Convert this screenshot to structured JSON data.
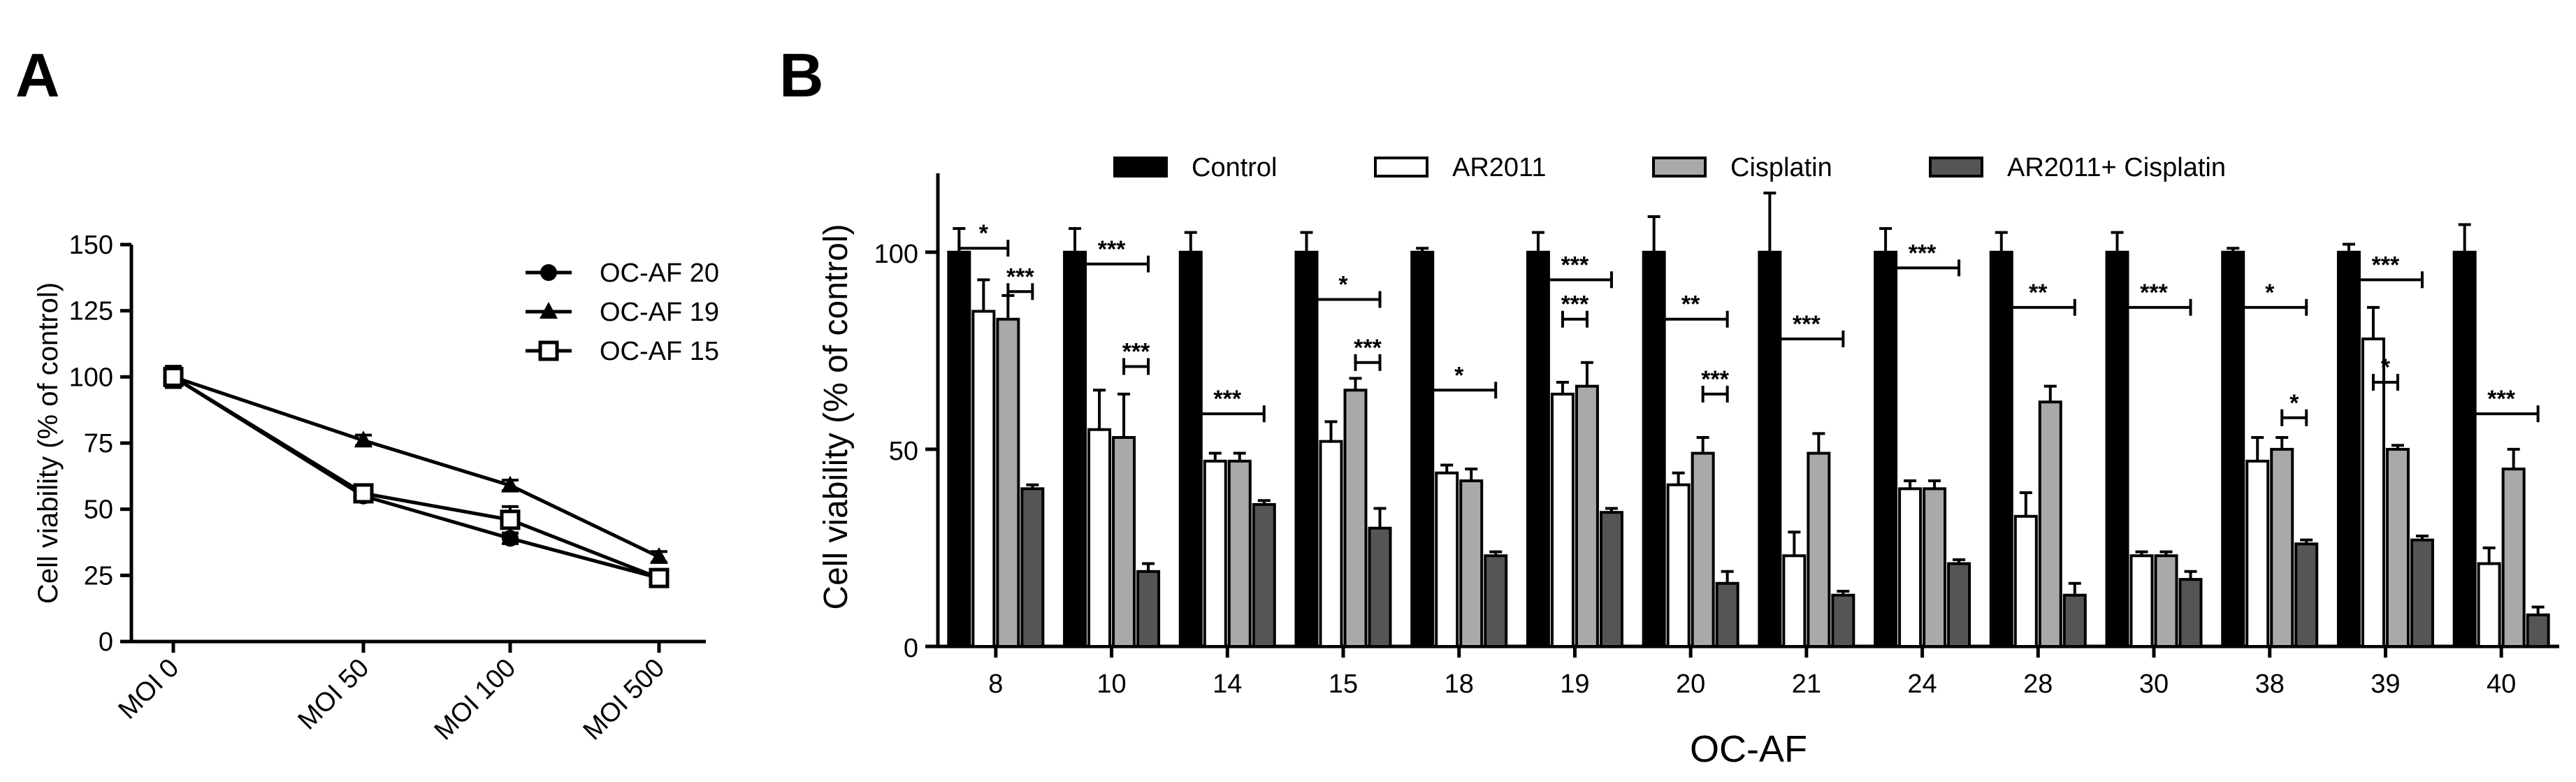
{
  "panels": {
    "a": "A",
    "b": "B"
  },
  "chart_data": [
    {
      "type": "line",
      "panel": "A",
      "categories": [
        "MOI 0",
        "MOI 50",
        "MOI 100",
        "MOI 500"
      ],
      "series": [
        {
          "name": "OC-AF 20",
          "marker": "circle",
          "values": [
            100,
            55,
            39,
            24
          ],
          "err": [
            3,
            2,
            2,
            2
          ]
        },
        {
          "name": "OC-AF 19",
          "marker": "triangle",
          "values": [
            100,
            76,
            59,
            32
          ],
          "err": [
            2,
            2,
            2,
            2
          ]
        },
        {
          "name": "OC-AF 15",
          "marker": "open-square",
          "values": [
            100,
            56,
            46,
            24
          ],
          "err": [
            4,
            3,
            5,
            3
          ]
        }
      ],
      "ylabel": "Cell viability (% of control)",
      "xlabel": "",
      "ylim": [
        0,
        150
      ],
      "yticks": [
        0,
        25,
        50,
        75,
        100,
        125,
        150
      ],
      "legend": "top-right",
      "grid": false
    },
    {
      "type": "bar",
      "panel": "B",
      "categories": [
        "8",
        "10",
        "14",
        "15",
        "18",
        "19",
        "20",
        "21",
        "24",
        "28",
        "30",
        "38",
        "39",
        "40"
      ],
      "series": [
        {
          "name": "Control",
          "color": "#000000",
          "values": [
            100,
            100,
            100,
            100,
            100,
            100,
            100,
            100,
            100,
            100,
            100,
            100,
            100,
            100
          ],
          "err": [
            6,
            6,
            5,
            5,
            1,
            5,
            9,
            15,
            6,
            5,
            5,
            1,
            2,
            7
          ]
        },
        {
          "name": "AR2011",
          "color": "#ffffff",
          "values": [
            85,
            55,
            47,
            52,
            44,
            64,
            41,
            23,
            40,
            33,
            23,
            47,
            78,
            21
          ],
          "err": [
            8,
            10,
            2,
            5,
            2,
            3,
            3,
            6,
            2,
            6,
            1,
            6,
            8,
            4
          ]
        },
        {
          "name": "Cisplatin",
          "color": "#a9a9a9",
          "values": [
            83,
            53,
            47,
            65,
            42,
            66,
            49,
            49,
            40,
            62,
            23,
            50,
            50,
            45
          ],
          "err": [
            6,
            11,
            2,
            3,
            3,
            6,
            4,
            5,
            2,
            4,
            1,
            3,
            1,
            5
          ]
        },
        {
          "name": "AR2011+ Cisplatin",
          "color": "#555555",
          "values": [
            40,
            19,
            36,
            30,
            23,
            34,
            16,
            13,
            21,
            13,
            17,
            26,
            27,
            8
          ],
          "err": [
            1,
            2,
            1,
            5,
            1,
            1,
            3,
            1,
            1,
            3,
            2,
            1,
            1,
            2
          ]
        }
      ],
      "ylabel": "Cell viability (% of control)",
      "xlabel": "OC-AF",
      "ylim": [
        0,
        120
      ],
      "yticks": [
        0,
        50,
        100
      ],
      "legend": "top",
      "grid": false,
      "annotations": [
        {
          "group": 0,
          "from": 0,
          "to": 2,
          "y": 101,
          "text": "*"
        },
        {
          "group": 0,
          "from": 2,
          "to": 3,
          "y": 90,
          "text": "***"
        },
        {
          "group": 1,
          "from": 0,
          "to": 3,
          "y": 97,
          "text": "***"
        },
        {
          "group": 1,
          "from": 2,
          "to": 3,
          "y": 71,
          "text": "***"
        },
        {
          "group": 2,
          "from": 0,
          "to": 3,
          "y": 59,
          "text": "***"
        },
        {
          "group": 3,
          "from": 0,
          "to": 3,
          "y": 88,
          "text": "*"
        },
        {
          "group": 3,
          "from": 2,
          "to": 3,
          "y": 72,
          "text": "***"
        },
        {
          "group": 4,
          "from": 0,
          "to": 3,
          "y": 65,
          "text": "*"
        },
        {
          "group": 5,
          "from": 0,
          "to": 3,
          "y": 93,
          "text": "***"
        },
        {
          "group": 5,
          "from": 1,
          "to": 2,
          "y": 83,
          "text": "***"
        },
        {
          "group": 6,
          "from": 0,
          "to": 3,
          "y": 83,
          "text": "**"
        },
        {
          "group": 6,
          "from": 2,
          "to": 3,
          "y": 64,
          "text": "***"
        },
        {
          "group": 7,
          "from": 0,
          "to": 3,
          "y": 78,
          "text": "***"
        },
        {
          "group": 8,
          "from": 0,
          "to": 3,
          "y": 96,
          "text": "***"
        },
        {
          "group": 9,
          "from": 0,
          "to": 3,
          "y": 86,
          "text": "**"
        },
        {
          "group": 10,
          "from": 0,
          "to": 3,
          "y": 86,
          "text": "***"
        },
        {
          "group": 11,
          "from": 0,
          "to": 3,
          "y": 86,
          "text": "*"
        },
        {
          "group": 11,
          "from": 2,
          "to": 3,
          "y": 58,
          "text": "*"
        },
        {
          "group": 12,
          "from": 0,
          "to": 3,
          "y": 93,
          "text": "***"
        },
        {
          "group": 12,
          "from": 1,
          "to": 2,
          "y": 67,
          "text": "*"
        },
        {
          "group": 13,
          "from": 0,
          "to": 3,
          "y": 59,
          "text": "***"
        }
      ]
    }
  ]
}
